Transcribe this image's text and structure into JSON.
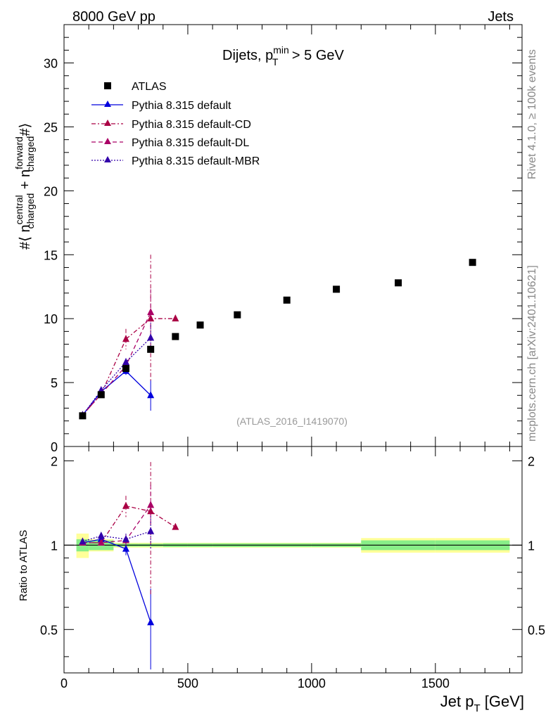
{
  "header": {
    "left": "8000 GeV pp",
    "right": "Jets"
  },
  "side_labels": {
    "rivet": "Rivet 4.1.0, ≥ 100k events",
    "mcplots": "mcplots.cern.ch [arXiv:2401.10621]"
  },
  "chart_data": {
    "type": "scatter",
    "title": "Dijets, p_T^min > 5 GeV",
    "title_parts": {
      "pre": "Dijets, p",
      "sup": "min",
      "sub": "T",
      "post": " > 5 GeV"
    },
    "watermark": "(ATLAS_2016_I1419070)",
    "ylabel": "#⟨ n_charged^central + n_charged^forward #⟩",
    "ylabel_parts": {
      "a": "#⟨ n",
      "a_sup": "central",
      "a_sub": "charged",
      "b": " + n",
      "b_sup": "forward",
      "b_sub": "charged",
      "c": "#⟩"
    },
    "xlabel": "Jet p_T [GeV]",
    "xlabel_parts": {
      "pre": "Jet p",
      "sub": "T",
      "post": " [GeV]"
    },
    "ratio_ylabel": "Ratio to ATLAS",
    "xlim": [
      0,
      1850
    ],
    "ylim": [
      0,
      33
    ],
    "ratio_ylim": [
      0.35,
      2.25
    ],
    "x_ticks": [
      "0",
      "500",
      "1000",
      "1500"
    ],
    "y_ticks": [
      "0",
      "5",
      "10",
      "15",
      "20",
      "25",
      "30"
    ],
    "ratio_y_ticks": [
      "0.5",
      "1",
      "2"
    ],
    "legend_position": "top-left",
    "legend": [
      "ATLAS",
      "Pythia 8.315 default",
      "Pythia 8.315 default-CD",
      "Pythia 8.315 default-DL",
      "Pythia 8.315 default-MBR"
    ],
    "data": {
      "name": "ATLAS",
      "color": "#000000",
      "x": [
        75,
        150,
        250,
        350,
        450,
        550,
        700,
        900,
        1100,
        1350,
        1650
      ],
      "y": [
        2.4,
        4.05,
        6.1,
        7.6,
        8.6,
        9.5,
        10.3,
        11.45,
        12.3,
        12.8,
        14.4
      ],
      "bins": [
        [
          50,
          100
        ],
        [
          100,
          200
        ],
        [
          200,
          300
        ],
        [
          300,
          400
        ],
        [
          400,
          500
        ],
        [
          500,
          600
        ],
        [
          600,
          800
        ],
        [
          800,
          1000
        ],
        [
          1000,
          1200
        ],
        [
          1200,
          1500
        ],
        [
          1500,
          1800
        ]
      ],
      "band_inner": [
        0.05,
        0.04,
        0.012,
        0.012,
        0.015,
        0.015,
        0.015,
        0.015,
        0.015,
        0.04,
        0.04
      ],
      "band_outer": [
        0.1,
        0.05,
        0.02,
        0.02,
        0.02,
        0.02,
        0.02,
        0.02,
        0.02,
        0.06,
        0.06
      ]
    },
    "series": [
      {
        "name": "Pythia 8.315 default",
        "color": "#0000dd",
        "dash": "",
        "x": [
          75,
          150,
          250,
          350
        ],
        "y": [
          2.45,
          4.3,
          5.9,
          4.0
        ],
        "err": [
          0.1,
          0.15,
          0.3,
          1.2
        ],
        "ratio": [
          1.02,
          1.05,
          0.97,
          0.53
        ],
        "ratio_err": [
          0.02,
          0.03,
          0.05,
          0.17
        ]
      },
      {
        "name": "Pythia 8.315 default-CD",
        "color": "#aa0044",
        "dash": "6,3,2,3",
        "x": [
          75,
          150,
          250,
          350,
          450
        ],
        "y": [
          2.45,
          4.1,
          8.4,
          10.0,
          10.0
        ],
        "err": [
          0.1,
          0.1,
          0.8,
          5.0,
          0.2
        ],
        "ratio": [
          1.02,
          1.02,
          1.38,
          1.32,
          1.16
        ],
        "ratio_err": [
          0.02,
          0.02,
          0.12,
          0.66,
          0.02
        ]
      },
      {
        "name": "Pythia 8.315 default-DL",
        "color": "#aa0066",
        "dash": "6,4",
        "x": [
          75,
          150,
          250,
          350
        ],
        "y": [
          2.45,
          4.1,
          6.3,
          10.5
        ],
        "err": [
          0.1,
          0.1,
          0.3,
          1.8
        ],
        "ratio": [
          1.02,
          1.02,
          1.04,
          1.39
        ],
        "ratio_err": [
          0.02,
          0.02,
          0.05,
          0.25
        ]
      },
      {
        "name": "Pythia 8.315 default-MBR",
        "color": "#3300aa",
        "dash": "2,2",
        "x": [
          75,
          150,
          250,
          350
        ],
        "y": [
          2.45,
          4.4,
          6.6,
          8.5
        ],
        "err": [
          0.1,
          0.12,
          0.3,
          1.2
        ],
        "ratio": [
          1.03,
          1.08,
          1.05,
          1.12
        ],
        "ratio_err": [
          0.02,
          0.03,
          0.05,
          0.15
        ]
      }
    ]
  }
}
